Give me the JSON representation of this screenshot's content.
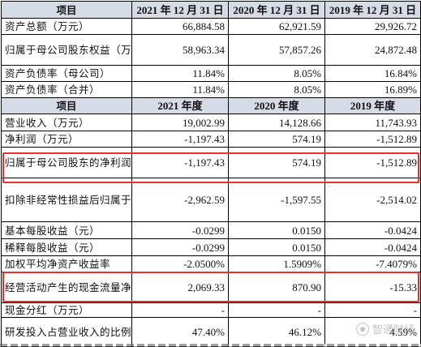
{
  "header1": {
    "item": "项目",
    "cols": [
      "2021 年 12 月 31 日",
      "2020 年 12 月 31 日",
      "2019 年 12 月 31 日"
    ]
  },
  "section1_rows": [
    {
      "label": "资产总额（万元）",
      "values": [
        "66,884.58",
        "62,921.59",
        "29,926.72"
      ]
    },
    {
      "label": "归属于母公司股东权益（万元）",
      "values": [
        "58,963.34",
        "57,857.26",
        "24,872.48"
      ]
    },
    {
      "label": "资产负债率（母公司）",
      "values": [
        "11.84%",
        "8.05%",
        "16.84%"
      ]
    },
    {
      "label": "资产负债率（合并）",
      "values": [
        "11.84%",
        "8.05%",
        "16.89%"
      ]
    }
  ],
  "header2": {
    "item": "项目",
    "cols": [
      "2021 年度",
      "2020 年度",
      "2019 年度"
    ]
  },
  "section2_rows": [
    {
      "label": "营业收入（万元）",
      "values": [
        "19,002.99",
        "14,128.66",
        "11,743.93"
      ]
    },
    {
      "label": "净利润（万元）",
      "values": [
        "-1,197.43",
        "574.19",
        "-1,512.89"
      ]
    },
    {
      "label": "归属于母公司股东的净利润（万元）",
      "values": [
        "-1,197.43",
        "574.19",
        "-1,512.89"
      ]
    },
    {
      "label": "扣除非经常性损益后归属于母公司股东的净利润（万元）",
      "values": [
        "-2,962.59",
        "-1,597.55",
        "-2,514.02"
      ]
    },
    {
      "label": "基本每股收益（元）",
      "values": [
        "-0.0299",
        "0.0150",
        "-0.0424"
      ]
    },
    {
      "label": "稀释每股收益（元）",
      "values": [
        "-0.0299",
        "0.0150",
        "-0.0424"
      ]
    },
    {
      "label": "加权平均净资产收益率",
      "values": [
        "-2.0500%",
        "1.5909%",
        "-7.4079%"
      ]
    },
    {
      "label": "经营活动产生的现金流量净额（万元）",
      "values": [
        "2,069.33",
        "870.90",
        "-15.33"
      ]
    },
    {
      "label": "现金分红（万元）",
      "values": [
        "-",
        "-",
        "-"
      ]
    },
    {
      "label": "研发投入占营业收入的比例",
      "values": [
        "47.40%",
        "46.12%",
        "4.59%"
      ]
    }
  ],
  "watermark": {
    "text": "智通财经",
    "icon": "logo-icon"
  },
  "colors": {
    "header_bg": "#d6dce5",
    "highlight": "#e8312b"
  }
}
